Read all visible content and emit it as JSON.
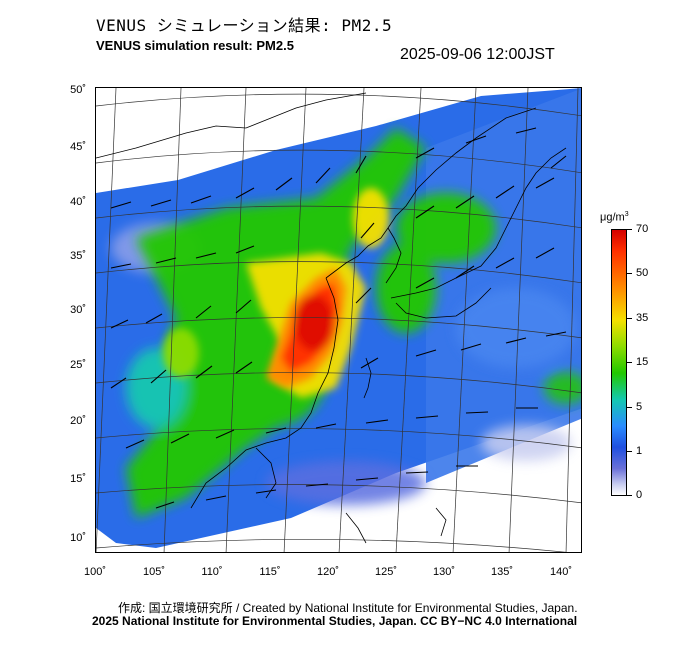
{
  "header": {
    "title_ja": "VENUS シミュレーション結果: PM2.5",
    "title_en": "VENUS simulation result: PM2.5",
    "timestamp": "2025-09-06 12:00JST"
  },
  "map": {
    "lat_labels": [
      "50˚",
      "45˚",
      "40˚",
      "35˚",
      "30˚",
      "25˚",
      "20˚",
      "15˚",
      "10˚"
    ],
    "lon_labels": [
      "100˚",
      "105˚",
      "110˚",
      "115˚",
      "120˚",
      "125˚",
      "130˚",
      "135˚",
      "140˚"
    ],
    "colors": {
      "very_low": "#c8cdf0",
      "low": "#2050e0",
      "moderate": "#22c800",
      "elevated": "#f5e000",
      "high": "#ff3000",
      "max": "#d40000"
    }
  },
  "colorbar": {
    "unit": "μg/m",
    "unit_sup": "3",
    "ticks": [
      "70",
      "50",
      "35",
      "15",
      "5",
      "1",
      "0"
    ]
  },
  "footer": {
    "credit_line1": "作成: 国立環境研究所 / Created by National Institute for Environmental Studies, Japan.",
    "credit_line2": "2025 National Institute for Environmental Studies, Japan. CC BY−NC 4.0 International"
  }
}
